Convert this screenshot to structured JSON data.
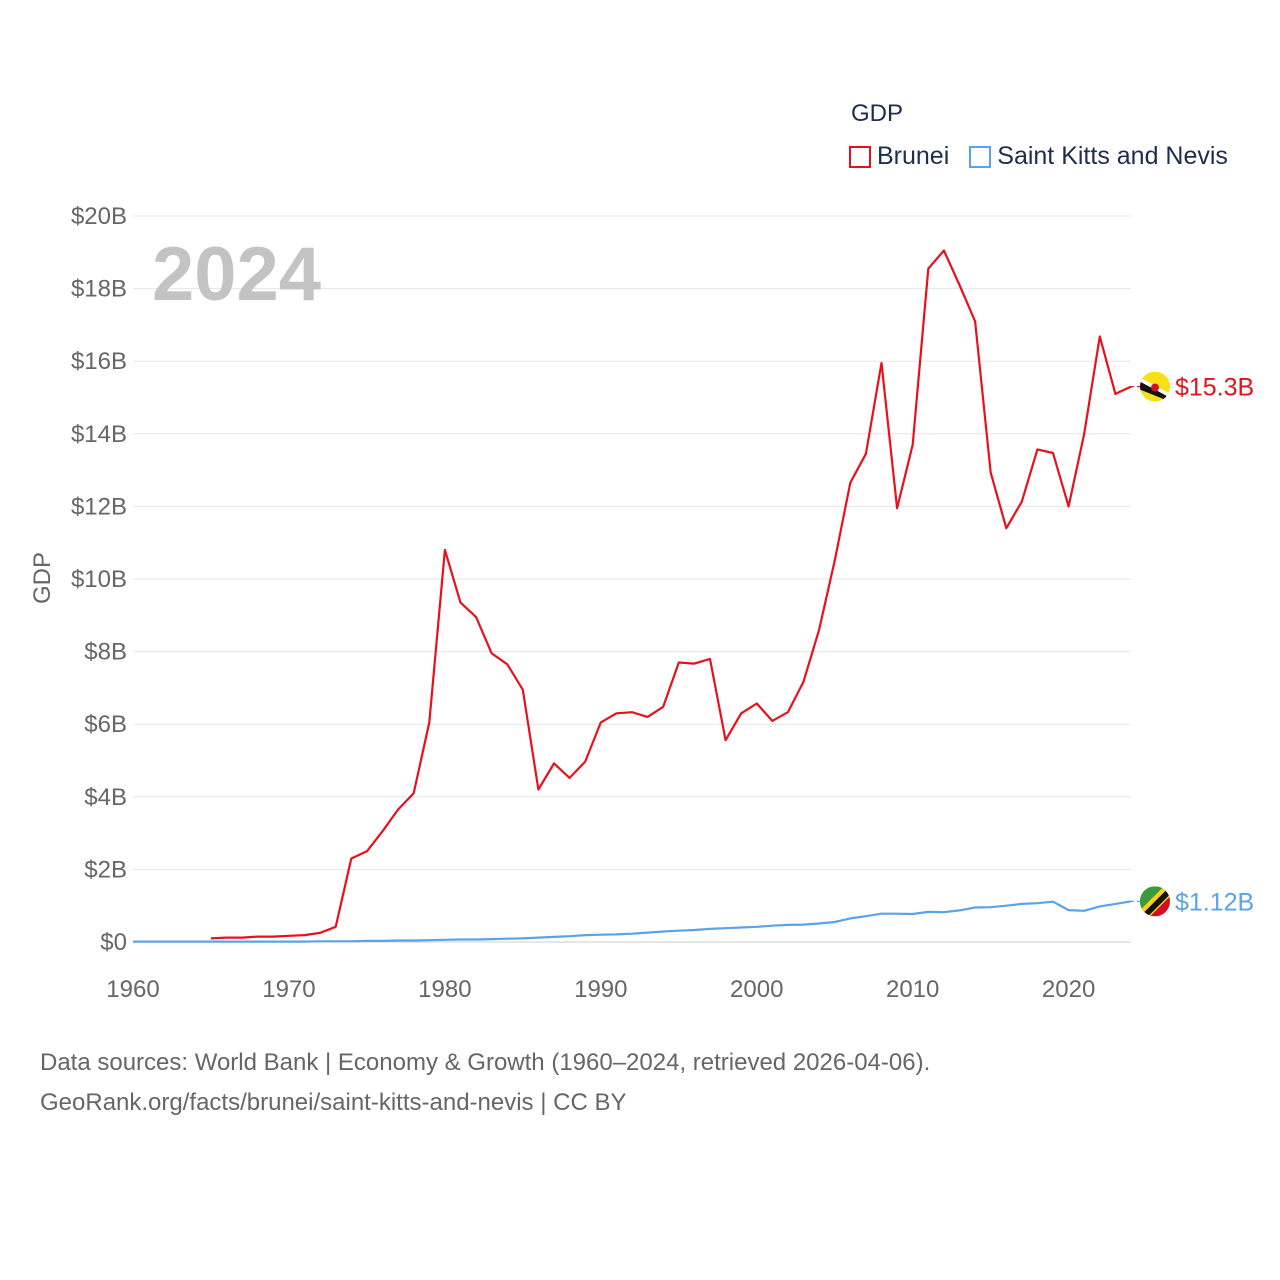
{
  "chart_data": {
    "type": "line",
    "title": "",
    "year_label": "2024",
    "xlabel": "",
    "ylabel": "GDP",
    "xlim": [
      1960,
      2024
    ],
    "ylim": [
      0,
      20
    ],
    "x_ticks": [
      1960,
      1970,
      1980,
      1990,
      2000,
      2010,
      2020
    ],
    "y_ticks": [
      {
        "value": 0,
        "label": "$0"
      },
      {
        "value": 2,
        "label": "$2B"
      },
      {
        "value": 4,
        "label": "$4B"
      },
      {
        "value": 6,
        "label": "$6B"
      },
      {
        "value": 8,
        "label": "$8B"
      },
      {
        "value": 10,
        "label": "$10B"
      },
      {
        "value": 12,
        "label": "$12B"
      },
      {
        "value": 14,
        "label": "$14B"
      },
      {
        "value": 16,
        "label": "$16B"
      },
      {
        "value": 18,
        "label": "$18B"
      },
      {
        "value": 20,
        "label": "$20B"
      }
    ],
    "grid": true,
    "legend_title": "GDP",
    "legend_position": "top-right",
    "series": [
      {
        "name": "Brunei",
        "color": "#e8111b",
        "end_label": "$15.3B",
        "flag": "brunei-flag",
        "x": [
          1965,
          1966,
          1967,
          1968,
          1969,
          1970,
          1971,
          1972,
          1973,
          1974,
          1975,
          1976,
          1977,
          1978,
          1979,
          1980,
          1981,
          1982,
          1983,
          1984,
          1985,
          1986,
          1987,
          1988,
          1989,
          1990,
          1991,
          1992,
          1993,
          1994,
          1995,
          1996,
          1997,
          1998,
          1999,
          2000,
          2001,
          2002,
          2003,
          2004,
          2005,
          2006,
          2007,
          2008,
          2009,
          2010,
          2011,
          2012,
          2013,
          2014,
          2015,
          2016,
          2017,
          2018,
          2019,
          2020,
          2021,
          2022,
          2023,
          2024
        ],
        "values": [
          0.1,
          0.12,
          0.12,
          0.15,
          0.15,
          0.17,
          0.19,
          0.25,
          0.42,
          2.3,
          2.5,
          3.05,
          3.65,
          4.1,
          6.05,
          10.8,
          9.35,
          8.95,
          7.95,
          7.65,
          6.95,
          4.2,
          4.92,
          4.52,
          4.97,
          6.05,
          6.3,
          6.33,
          6.2,
          6.48,
          7.7,
          7.67,
          7.8,
          5.56,
          6.3,
          6.57,
          6.09,
          6.33,
          7.17,
          8.6,
          10.5,
          12.65,
          13.45,
          15.95,
          11.95,
          13.7,
          18.55,
          19.05,
          18.1,
          17.1,
          12.93,
          11.4,
          12.13,
          13.57,
          13.47,
          12.0,
          14.0,
          16.68,
          15.1,
          15.3
        ]
      },
      {
        "name": "Saint Kitts and Nevis",
        "color": "#5aa3e8",
        "end_label": "$1.12B",
        "flag": "saint-kitts-and-nevis-flag",
        "x": [
          1960,
          1961,
          1962,
          1963,
          1964,
          1965,
          1966,
          1967,
          1968,
          1969,
          1970,
          1971,
          1972,
          1973,
          1974,
          1975,
          1976,
          1977,
          1978,
          1979,
          1980,
          1981,
          1982,
          1983,
          1984,
          1985,
          1986,
          1987,
          1988,
          1989,
          1990,
          1991,
          1992,
          1993,
          1994,
          1995,
          1996,
          1997,
          1998,
          1999,
          2000,
          2001,
          2002,
          2003,
          2004,
          2005,
          2006,
          2007,
          2008,
          2009,
          2010,
          2011,
          2012,
          2013,
          2014,
          2015,
          2016,
          2017,
          2018,
          2019,
          2020,
          2021,
          2022,
          2023,
          2024
        ],
        "values": [
          0.01,
          0.01,
          0.01,
          0.01,
          0.01,
          0.01,
          0.01,
          0.01,
          0.01,
          0.01,
          0.01,
          0.01,
          0.02,
          0.02,
          0.02,
          0.03,
          0.03,
          0.04,
          0.04,
          0.05,
          0.06,
          0.07,
          0.07,
          0.08,
          0.09,
          0.1,
          0.12,
          0.14,
          0.16,
          0.19,
          0.2,
          0.21,
          0.23,
          0.26,
          0.29,
          0.31,
          0.33,
          0.36,
          0.38,
          0.4,
          0.42,
          0.45,
          0.47,
          0.48,
          0.51,
          0.55,
          0.65,
          0.71,
          0.78,
          0.78,
          0.77,
          0.83,
          0.82,
          0.87,
          0.95,
          0.96,
          1.0,
          1.05,
          1.07,
          1.11,
          0.88,
          0.86,
          0.98,
          1.05,
          1.12
        ]
      }
    ]
  },
  "sources": {
    "line1": "Data sources: World Bank | Economy & Growth (1960–2024, retrieved 2026-04-06).",
    "line2": "GeoRank.org/facts/brunei/saint-kitts-and-nevis | CC BY"
  }
}
